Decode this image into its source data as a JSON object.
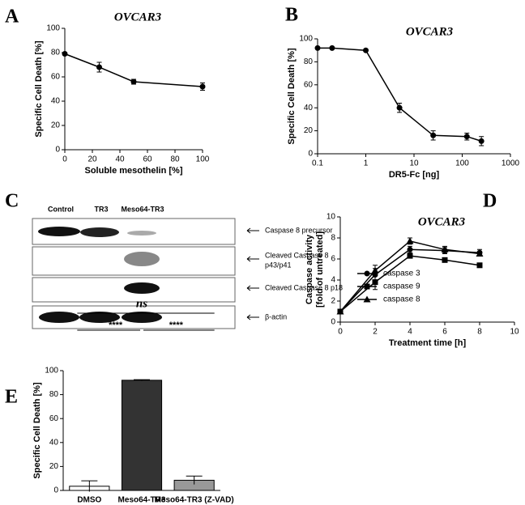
{
  "chart_data": [
    {
      "type": "line",
      "label": "A",
      "title": "OVCAR3",
      "xlabel": "Soluble mesothelin  [%]",
      "ylabel": "Specific Cell Death [%]",
      "x": [
        0,
        25,
        50,
        100
      ],
      "values": [
        79,
        68,
        56,
        52
      ],
      "errors": [
        1,
        4,
        2,
        3
      ],
      "color": "#000000",
      "marker": "circle",
      "xlim": [
        0,
        100
      ],
      "xticks": [
        0,
        20,
        40,
        60,
        80,
        100
      ],
      "ylim": [
        0,
        100
      ],
      "yticks": [
        0,
        20,
        40,
        60,
        80,
        100
      ]
    },
    {
      "type": "line",
      "label": "B",
      "title": "OVCAR3",
      "xlabel": "DR5-Fc [ng]",
      "ylabel": "Specific Cell Death [%]",
      "xscale": "log",
      "x": [
        0.1,
        0.2,
        1,
        5,
        25,
        125,
        250
      ],
      "values": [
        92,
        92,
        90,
        40,
        16,
        15,
        11
      ],
      "errors": [
        0,
        0,
        0,
        4,
        4,
        3,
        4
      ],
      "color": "#000000",
      "marker": "circle",
      "xlim": [
        0.1,
        1000
      ],
      "xticks": [
        0.1,
        1,
        10,
        100,
        1000
      ],
      "ylim": [
        0,
        100
      ],
      "yticks": [
        0,
        20,
        40,
        60,
        80,
        100
      ]
    },
    {
      "type": "line",
      "label": "D",
      "title": "OVCAR3",
      "xlabel": "Treatment time [h]",
      "ylabel": [
        "Caspase activity",
        "[fold of untreated]"
      ],
      "x": [
        0,
        2,
        4,
        6,
        8
      ],
      "series": [
        {
          "name": "caspase 3",
          "color": "#000000",
          "marker": "circle",
          "values": [
            1,
            4.5,
            6.9,
            6.8,
            6.6
          ],
          "errors": [
            0,
            0.6,
            0.3,
            0.3,
            0.3
          ]
        },
        {
          "name": "caspase 9",
          "color": "#000000",
          "marker": "square",
          "values": [
            1,
            3.8,
            6.3,
            5.9,
            5.4
          ],
          "errors": [
            0,
            0.7,
            0.1,
            0.1,
            0.1
          ]
        },
        {
          "name": "caspase 8",
          "color": "#000000",
          "marker": "triangle",
          "values": [
            1,
            4.9,
            7.7,
            6.9,
            6.5
          ],
          "errors": [
            0,
            0.5,
            0.3,
            0.3,
            0.2
          ]
        }
      ],
      "xlim": [
        0,
        10
      ],
      "xticks": [
        0,
        2,
        4,
        6,
        8,
        10
      ],
      "ylim": [
        0,
        10
      ],
      "yticks": [
        0,
        2,
        4,
        6,
        8,
        10
      ]
    },
    {
      "type": "bar",
      "label": "E",
      "ylabel": "Specific Cell Death [%]",
      "categories": [
        "DMSO",
        "Meso64-TR3",
        "Meso64-TR3 (Z-VAD)"
      ],
      "values": [
        3.5,
        92,
        8.5
      ],
      "errors": [
        4.5,
        0.5,
        3.5
      ],
      "colors": [
        "#ffffff",
        "#333333",
        "#999999"
      ],
      "annotations": [
        "ns",
        "****",
        "****"
      ],
      "ylim": [
        0,
        100
      ],
      "yticks": [
        0,
        20,
        40,
        60,
        80,
        100
      ]
    }
  ],
  "blot": {
    "label": "C",
    "columns": [
      "Control",
      "TR3",
      "Meso64-TR3"
    ],
    "bands": [
      [
        "Caspase 8 precursor"
      ],
      [
        "Cleaved Caspase 8",
        "p43/p41"
      ],
      [
        "Cleaved Caspase 8  p18"
      ],
      [
        "β-actin"
      ]
    ]
  }
}
